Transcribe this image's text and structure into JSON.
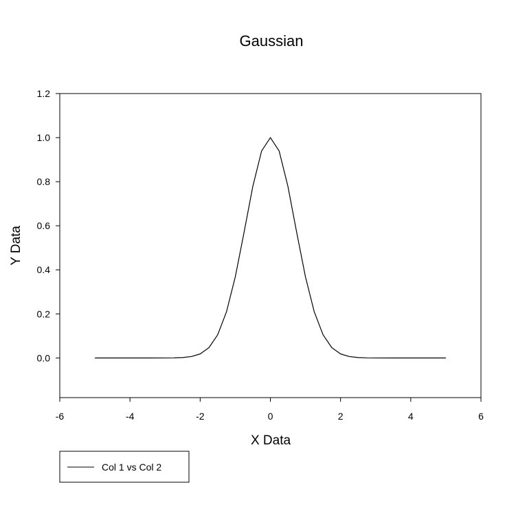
{
  "chart_data": {
    "type": "line",
    "title": "Gaussian",
    "xlabel": "X Data",
    "ylabel": "Y Data",
    "xlim": [
      -6,
      6
    ],
    "ylim": [
      -0.18,
      1.2
    ],
    "xticks": [
      -6,
      -4,
      -2,
      0,
      2,
      4,
      6
    ],
    "xtick_labels": [
      "-6",
      "-4",
      "-2",
      "0",
      "2",
      "4",
      "6"
    ],
    "yticks": [
      0.0,
      0.2,
      0.4,
      0.6,
      0.8,
      1.0,
      1.2
    ],
    "ytick_labels": [
      "0.0",
      "0.2",
      "0.4",
      "0.6",
      "0.8",
      "1.0",
      "1.2"
    ],
    "grid": false,
    "legend_position": "bottom-left",
    "series": [
      {
        "name": "Col 1 vs Col 2",
        "color": "#000000",
        "x": [
          -5.0,
          -4.5,
          -4.0,
          -3.5,
          -3.0,
          -2.75,
          -2.5,
          -2.25,
          -2.0,
          -1.75,
          -1.5,
          -1.25,
          -1.0,
          -0.75,
          -0.5,
          -0.25,
          0.0,
          0.25,
          0.5,
          0.75,
          1.0,
          1.25,
          1.5,
          1.75,
          2.0,
          2.25,
          2.5,
          2.75,
          3.0,
          3.5,
          4.0,
          4.5,
          5.0
        ],
        "y": [
          0.0,
          0.0,
          0.0,
          0.0,
          0.0001,
          0.0005,
          0.0019,
          0.0063,
          0.0183,
          0.0468,
          0.1054,
          0.2096,
          0.3679,
          0.5698,
          0.7788,
          0.9394,
          1.0,
          0.9394,
          0.7788,
          0.5698,
          0.3679,
          0.2096,
          0.1054,
          0.0468,
          0.0183,
          0.0063,
          0.0019,
          0.0005,
          0.0001,
          0.0,
          0.0,
          0.0,
          0.0
        ]
      }
    ]
  }
}
